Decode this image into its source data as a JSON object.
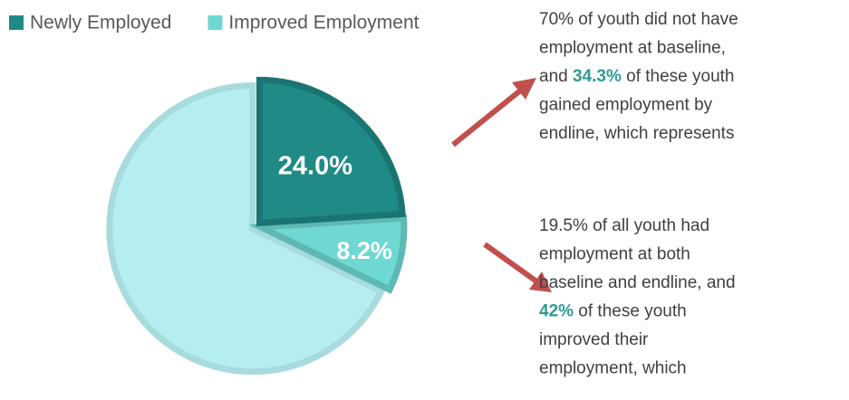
{
  "chart_data": {
    "type": "pie",
    "categories": [
      "Newly Employed",
      "Improved Employment",
      null
    ],
    "values": [
      24.0,
      8.2,
      67.8
    ],
    "value_labels": [
      "24.0%",
      "8.2%",
      null
    ],
    "colors": [
      "#1f8a86",
      "#6fd8d3",
      "#b6eef0"
    ],
    "legend": "top-left",
    "annotations": [
      {
        "lines": [
          [
            {
              "text": "70% of youth did not have"
            }
          ],
          [
            {
              "text": "employment at baseline,"
            }
          ],
          [
            {
              "text": "and "
            },
            {
              "text": "34.3%",
              "bold": true
            },
            {
              "text": " of these youth"
            }
          ],
          [
            {
              "text": "gained employment by"
            }
          ],
          [
            {
              "text": "endline, which represents"
            }
          ]
        ]
      },
      {
        "lines": [
          [
            {
              "text": "19.5% of all youth had"
            }
          ],
          [
            {
              "text": "employment at both"
            }
          ],
          [
            {
              "text": "baseline and endline, and"
            }
          ],
          [
            {
              "text": "42%",
              "bold": true
            },
            {
              "text": " of these youth"
            }
          ],
          [
            {
              "text": "improved their"
            }
          ],
          [
            {
              "text": "employment, which"
            }
          ]
        ]
      }
    ]
  }
}
